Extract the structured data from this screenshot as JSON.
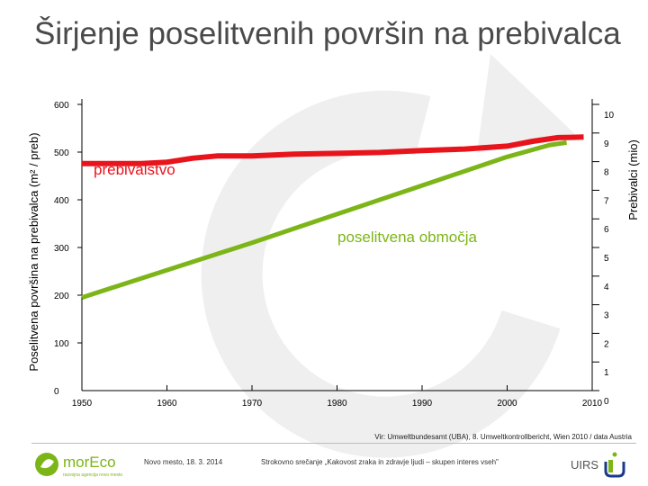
{
  "title": "Širjenje poselitvenih površin na prebivalca",
  "chart_data": {
    "type": "line",
    "ylabel_left": "Poselitvena površina na prebivalca (m² / preb)",
    "ylabel_right": "Prebivalci (mio)",
    "left_ticks": [
      "600",
      "500",
      "400",
      "300",
      "200",
      "100",
      "0"
    ],
    "right_ticks": [
      "10",
      "9",
      "8",
      "7",
      "6",
      "5",
      "4",
      "3",
      "2",
      "1",
      "0"
    ],
    "x_ticks": [
      "1950",
      "1960",
      "1970",
      "1980",
      "1990",
      "2000",
      "2010"
    ],
    "xlim": [
      1950,
      2010
    ],
    "ylim_left": [
      0,
      600
    ],
    "ylim_right": [
      0,
      10
    ],
    "grid": false,
    "series": [
      {
        "name": "prebivalstvo",
        "axis": "right",
        "color": "#e8141c",
        "x": [
          1950,
          1953,
          1957,
          1960,
          1963,
          1966,
          1970,
          1975,
          1980,
          1985,
          1990,
          1995,
          2000,
          2003,
          2006,
          2009
        ],
        "values": [
          7.93,
          7.93,
          7.93,
          7.98,
          8.12,
          8.2,
          8.2,
          8.26,
          8.29,
          8.32,
          8.39,
          8.44,
          8.54,
          8.71,
          8.84,
          8.86
        ]
      },
      {
        "name": "poselitvena območja",
        "axis": "left",
        "color": "#7cb518",
        "x": [
          1950,
          1970,
          1990,
          2000,
          2005,
          2007
        ],
        "values": [
          195,
          310,
          430,
          490,
          515,
          520
        ]
      }
    ]
  },
  "footer": {
    "source": "Vir: Umweltbundesamt (UBA), 8. Umweltkontrollbericht, Wien 2010 / data Austria",
    "location_date": "Novo mesto, 18. 3. 2014",
    "event": "Strokovno srečanje „Kakovost zraka in zdravje ljudi – skupen interes vseh\"",
    "logo_left": "morEco",
    "logo_left_sub": "razvojna agencija novo mesto",
    "logo_right": "UIRS"
  },
  "colors": {
    "title": "#4a4a4a",
    "population": "#e8141c",
    "settlement": "#7cb518",
    "watermark": "#efefef"
  }
}
